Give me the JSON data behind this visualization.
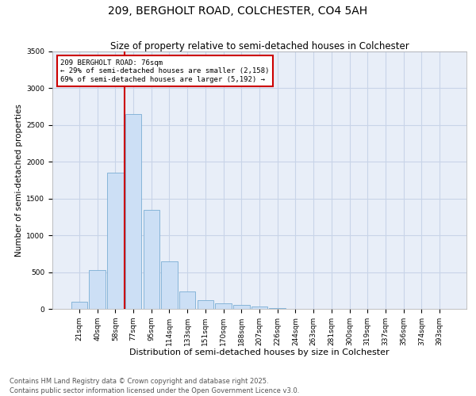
{
  "title1": "209, BERGHOLT ROAD, COLCHESTER, CO4 5AH",
  "title2": "Size of property relative to semi-detached houses in Colchester",
  "xlabel": "Distribution of semi-detached houses by size in Colchester",
  "ylabel": "Number of semi-detached properties",
  "categories": [
    "21sqm",
    "40sqm",
    "58sqm",
    "77sqm",
    "95sqm",
    "114sqm",
    "133sqm",
    "151sqm",
    "170sqm",
    "188sqm",
    "207sqm",
    "226sqm",
    "244sqm",
    "263sqm",
    "281sqm",
    "300sqm",
    "319sqm",
    "337sqm",
    "356sqm",
    "374sqm",
    "393sqm"
  ],
  "values": [
    100,
    530,
    1850,
    2650,
    1350,
    650,
    240,
    120,
    80,
    50,
    30,
    10,
    5,
    3,
    2,
    1,
    1,
    1,
    1,
    0,
    0
  ],
  "bar_color": "#ccdff5",
  "bar_edge_color": "#7aadd4",
  "vline_color": "#cc0000",
  "vline_x_index": 3,
  "subject_label": "209 BERGHOLT ROAD: 76sqm",
  "annotation_line1": "← 29% of semi-detached houses are smaller (2,158)",
  "annotation_line2": "69% of semi-detached houses are larger (5,192) →",
  "annotation_box_color": "#ffffff",
  "annotation_box_edge": "#cc0000",
  "ylim": [
    0,
    3500
  ],
  "yticks": [
    0,
    500,
    1000,
    1500,
    2000,
    2500,
    3000,
    3500
  ],
  "grid_color": "#c8d4e8",
  "background_color": "#e8eef8",
  "footer": "Contains HM Land Registry data © Crown copyright and database right 2025.\nContains public sector information licensed under the Open Government Licence v3.0.",
  "title1_fontsize": 10,
  "title2_fontsize": 8.5,
  "xlabel_fontsize": 8,
  "ylabel_fontsize": 7.5,
  "tick_fontsize": 6.5,
  "annot_fontsize": 6.5,
  "footer_fontsize": 6
}
